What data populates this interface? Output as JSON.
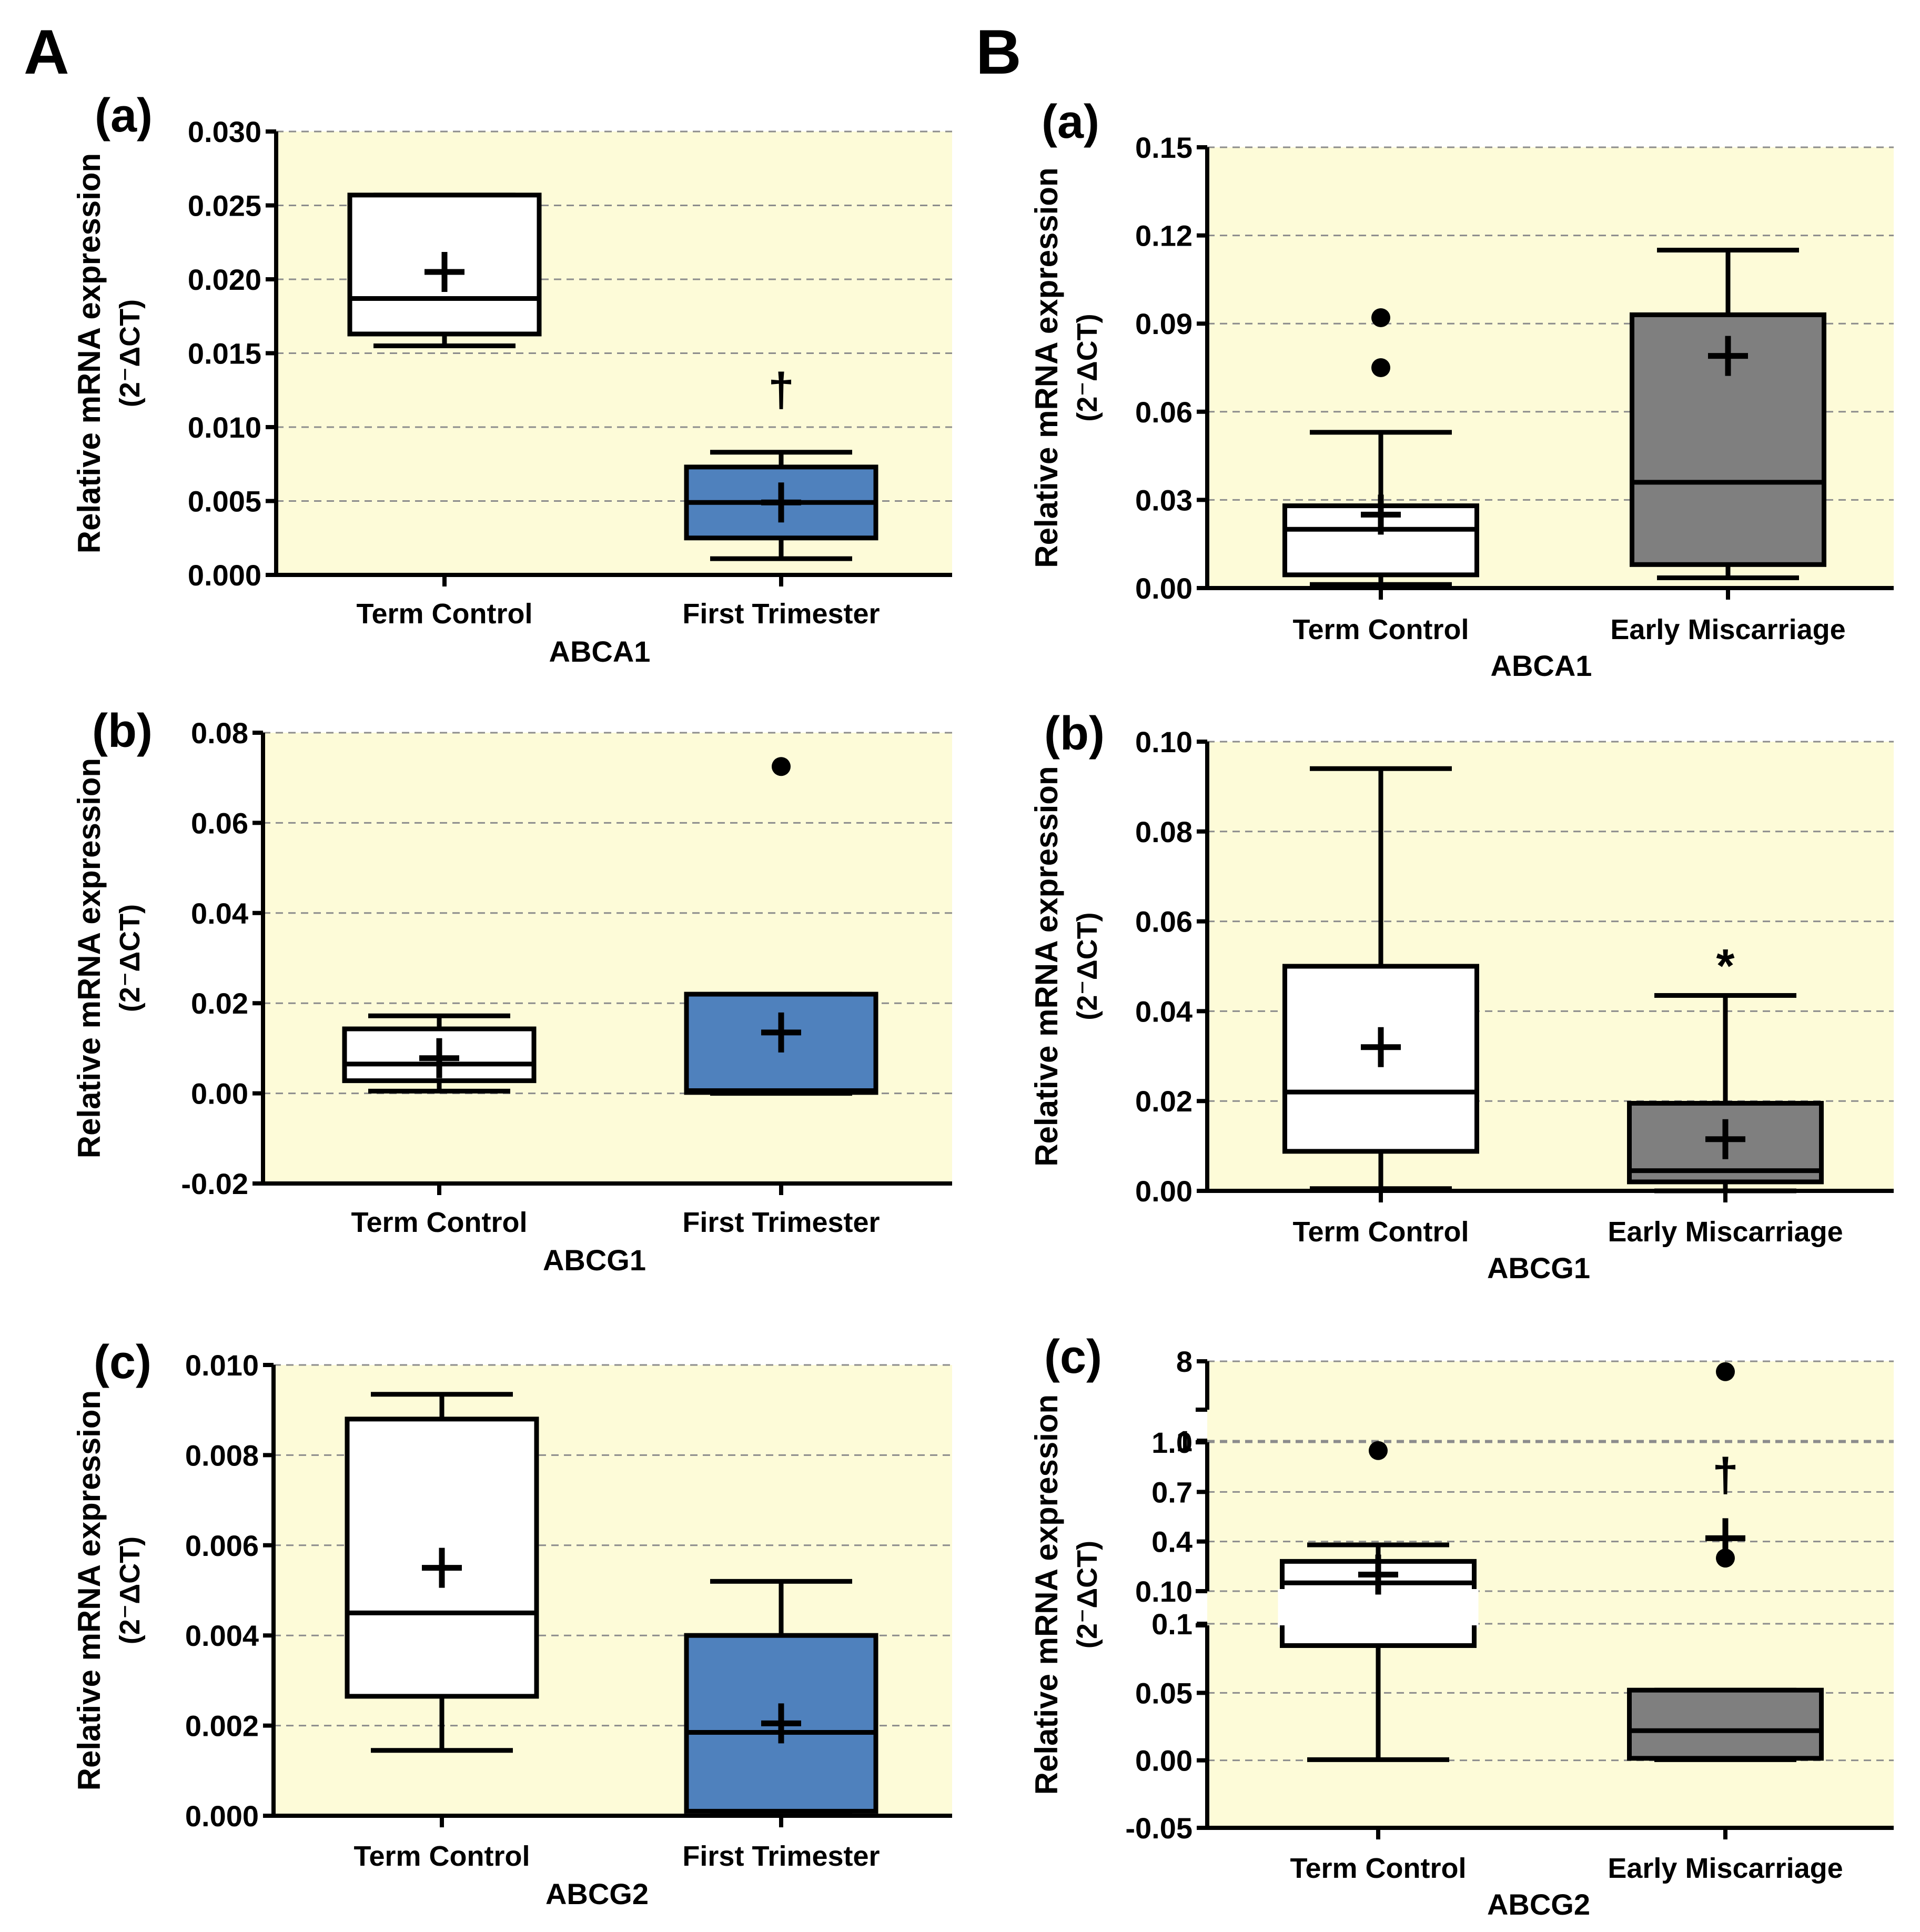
{
  "figure": {
    "panel_labels": [
      "A",
      "B"
    ],
    "colors": {
      "plot_bg": "#fdfbd8",
      "control_fill": "#ffffff",
      "first_trimester_fill": "#4f81bd",
      "miscarriage_fill": "#7f7f7f"
    }
  },
  "chart_data": [
    {
      "id": "A-a",
      "panel": "A",
      "label": "(a)",
      "type": "box",
      "gene": "ABCA1",
      "ylabel": "Relative mRNA expression",
      "ylabel2": "(2⁻ΔCT)",
      "ylim": [
        0,
        0.03
      ],
      "yticks": [
        "0.000",
        "0.005",
        "0.010",
        "0.015",
        "0.020",
        "0.025",
        "0.030"
      ],
      "categories": [
        "Term Control",
        "First Trimester"
      ],
      "fills": [
        "control",
        "first_trimester"
      ],
      "boxes": [
        {
          "min": 0.0155,
          "q1": 0.0163,
          "median": 0.0187,
          "q3": 0.0257,
          "max": 0.0257,
          "mean": 0.0205,
          "outliers": []
        },
        {
          "min": 0.0011,
          "q1": 0.0025,
          "median": 0.0049,
          "q3": 0.0073,
          "max": 0.0083,
          "mean": 0.0049,
          "outliers": []
        }
      ],
      "annotations": [
        {
          "category": 1,
          "text": "†",
          "y": 0.0125
        }
      ]
    },
    {
      "id": "A-b",
      "panel": "A",
      "label": "(b)",
      "type": "box",
      "gene": "ABCG1",
      "ylabel": "Relative mRNA expression",
      "ylabel2": "(2⁻ΔCT)",
      "ylim": [
        -0.02,
        0.08
      ],
      "yticks": [
        "-0.02",
        "0.00",
        "0.02",
        "0.04",
        "0.06",
        "0.08"
      ],
      "categories": [
        "Term Control",
        "First Trimester"
      ],
      "fills": [
        "control",
        "first_trimester"
      ],
      "boxes": [
        {
          "min": 0.0005,
          "q1": 0.0028,
          "median": 0.0065,
          "q3": 0.0143,
          "max": 0.0172,
          "mean": 0.0078,
          "outliers": []
        },
        {
          "min": 0.0,
          "q1": 0.0002,
          "median": 0.0006,
          "q3": 0.022,
          "max": 0.022,
          "mean": 0.0135,
          "outliers": [
            0.0725
          ]
        }
      ],
      "annotations": []
    },
    {
      "id": "A-c",
      "panel": "A",
      "label": "(c)",
      "type": "box",
      "gene": "ABCG2",
      "ylabel": "Relative mRNA expression",
      "ylabel2": "(2⁻ΔCT)",
      "ylim": [
        0,
        0.01
      ],
      "yticks": [
        "0.000",
        "0.002",
        "0.004",
        "0.006",
        "0.008",
        "0.010"
      ],
      "categories": [
        "Term Control",
        "First Trimester"
      ],
      "fills": [
        "control",
        "first_trimester"
      ],
      "boxes": [
        {
          "min": 0.00145,
          "q1": 0.00265,
          "median": 0.0045,
          "q3": 0.0088,
          "max": 0.00935,
          "mean": 0.0055,
          "outliers": []
        },
        {
          "min": 0.0001,
          "q1": 0.0001,
          "median": 0.00185,
          "q3": 0.004,
          "max": 0.0052,
          "mean": 0.00205,
          "outliers": []
        }
      ],
      "annotations": []
    },
    {
      "id": "B-a",
      "panel": "B",
      "label": "(a)",
      "type": "box",
      "gene": "ABCA1",
      "ylabel": "Relative mRNA expression",
      "ylabel2": "(2⁻ΔCT)",
      "ylim": [
        0,
        0.15
      ],
      "yticks": [
        "0.00",
        "0.03",
        "0.06",
        "0.09",
        "0.12",
        "0.15"
      ],
      "categories": [
        "Term Control",
        "Early Miscarriage"
      ],
      "fills": [
        "control",
        "miscarriage"
      ],
      "boxes": [
        {
          "min": 0.0012,
          "q1": 0.0045,
          "median": 0.02,
          "q3": 0.028,
          "max": 0.053,
          "mean": 0.025,
          "outliers": [
            0.075,
            0.092
          ]
        },
        {
          "min": 0.0035,
          "q1": 0.008,
          "median": 0.036,
          "q3": 0.093,
          "max": 0.115,
          "mean": 0.079,
          "outliers": []
        }
      ],
      "annotations": []
    },
    {
      "id": "B-b",
      "panel": "B",
      "label": "(b)",
      "type": "box",
      "gene": "ABCG1",
      "ylabel": "Relative mRNA expression",
      "ylabel2": "(2⁻ΔCT)",
      "ylim": [
        0,
        0.1
      ],
      "yticks": [
        "0.00",
        "0.02",
        "0.04",
        "0.06",
        "0.08",
        "0.10"
      ],
      "categories": [
        "Term Control",
        "Early Miscarriage"
      ],
      "fills": [
        "control",
        "miscarriage"
      ],
      "boxes": [
        {
          "min": 0.0005,
          "q1": 0.0088,
          "median": 0.022,
          "q3": 0.05,
          "max": 0.094,
          "mean": 0.032,
          "outliers": []
        },
        {
          "min": 0.0,
          "q1": 0.002,
          "median": 0.0045,
          "q3": 0.0195,
          "max": 0.0435,
          "mean": 0.0115,
          "outliers": []
        }
      ],
      "annotations": [
        {
          "category": 1,
          "text": "*",
          "y": 0.05
        }
      ]
    },
    {
      "id": "B-c",
      "panel": "B",
      "label": "(c)",
      "type": "box",
      "gene": "ABCG2",
      "ylabel": "Relative mRNA expression",
      "ylabel2": "(2⁻ΔCT)",
      "broken_axis": true,
      "segments": [
        {
          "range": [
            -0.05,
            0.1
          ],
          "ticks": [
            "-0.05",
            "0.00",
            "0.05",
            "0.10"
          ]
        },
        {
          "range": [
            0.1,
            1.0
          ],
          "ticks": [
            "0.1",
            "0.4",
            "0.7",
            "1.0"
          ]
        },
        {
          "range": [
            1,
            8
          ],
          "ticks": [
            "1",
            "8"
          ]
        }
      ],
      "categories": [
        "Term Control",
        "Early Miscarriage"
      ],
      "fills": [
        "control",
        "miscarriage"
      ],
      "boxes": [
        {
          "min": 0.0005,
          "q1": 0.085,
          "median": 0.15,
          "q3": 0.28,
          "max": 0.38,
          "mean": 0.2,
          "outliers": [
            0.95
          ]
        },
        {
          "min": 0.0005,
          "q1": 0.0015,
          "median": 0.022,
          "q3": 0.052,
          "max": 0.052,
          "mean": 0.42,
          "outliers": [
            0.3,
            6.5
          ]
        }
      ],
      "annotations": [
        {
          "category": 1,
          "text": "†",
          "y": 0.8
        }
      ]
    }
  ]
}
